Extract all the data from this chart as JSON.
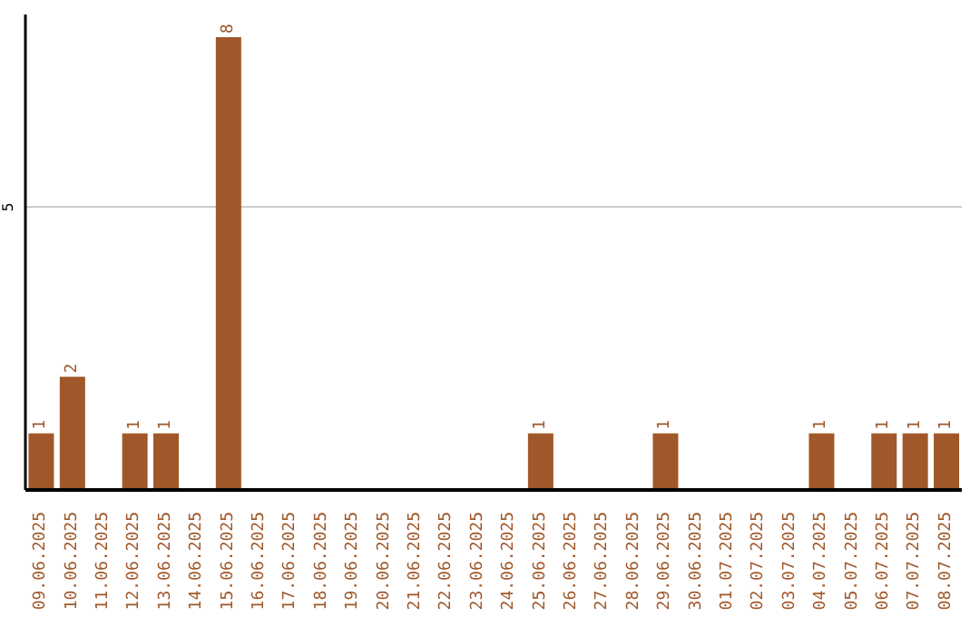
{
  "chart_data": {
    "type": "bar",
    "categories": [
      "09.06.2025",
      "10.06.2025",
      "11.06.2025",
      "12.06.2025",
      "13.06.2025",
      "14.06.2025",
      "15.06.2025",
      "16.06.2025",
      "17.06.2025",
      "18.06.2025",
      "19.06.2025",
      "20.06.2025",
      "21.06.2025",
      "22.06.2025",
      "23.06.2025",
      "24.06.2025",
      "25.06.2025",
      "26.06.2025",
      "27.06.2025",
      "28.06.2025",
      "29.06.2025",
      "30.06.2025",
      "01.07.2025",
      "02.07.2025",
      "03.07.2025",
      "04.07.2025",
      "05.07.2025",
      "06.07.2025",
      "07.07.2025",
      "08.07.2025"
    ],
    "values": [
      1,
      2,
      0,
      1,
      1,
      0,
      8,
      0,
      0,
      0,
      0,
      0,
      0,
      0,
      0,
      0,
      1,
      0,
      0,
      0,
      1,
      0,
      0,
      0,
      0,
      1,
      0,
      1,
      1,
      1
    ],
    "value_labels": [
      "1",
      "2",
      null,
      "1",
      "1",
      null,
      "8",
      null,
      null,
      null,
      null,
      null,
      null,
      null,
      null,
      null,
      "1",
      null,
      null,
      null,
      "1",
      null,
      null,
      null,
      null,
      "1",
      null,
      "1",
      "1",
      "1"
    ],
    "color": "#a0582a",
    "ylim": [
      0,
      8.4
    ],
    "yticks": [
      5
    ],
    "grid": "y"
  }
}
